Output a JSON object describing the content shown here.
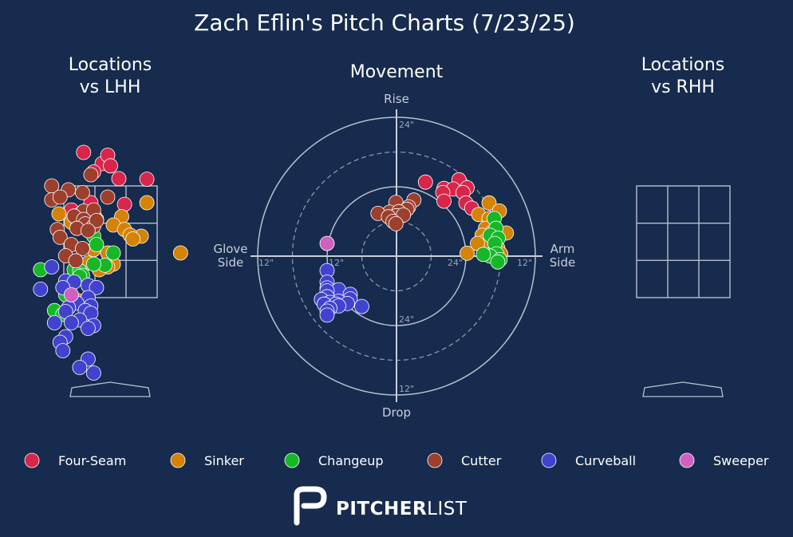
{
  "title": "Zach Eflin's Pitch Charts (7/23/25)",
  "panels": {
    "lhh_title": [
      "Locations",
      "vs LHH"
    ],
    "movement_title": "Movement",
    "rhh_title": [
      "Locations",
      "vs RHH"
    ]
  },
  "movement_labels": {
    "top": "Rise",
    "bottom": "Drop",
    "left": [
      "Glove",
      "Side"
    ],
    "right": [
      "Arm",
      "Side"
    ],
    "ring_labels": [
      "24\"",
      "12\"",
      "12\"",
      "24\"",
      "12\"",
      "24\"",
      "12\"",
      "24\""
    ]
  },
  "brand": {
    "bold": "PITCHER",
    "light": "LIST"
  },
  "colors": {
    "background": "#162b4d",
    "Four-Seam": "#d7264a",
    "Sinker": "#d48304",
    "Changeup": "#16b828",
    "Cutter": "#9c3f2d",
    "Curveball": "#4143cf",
    "Sweeper": "#d060c0"
  },
  "legend": [
    "Four-Seam",
    "Sinker",
    "Changeup",
    "Cutter",
    "Curveball",
    "Sweeper"
  ],
  "chart_data": [
    {
      "type": "scatter",
      "title": "Locations vs LHH",
      "xlabel": "",
      "ylabel": "",
      "strike_zone": "3x3 grid",
      "series": [
        {
          "name": "Four-Seam",
          "points": [
            [
              -0.48,
              4.1
            ],
            [
              -0.15,
              3.9
            ],
            [
              -0.05,
              4.05
            ],
            [
              0.0,
              3.86
            ],
            [
              -0.3,
              3.75
            ],
            [
              0.15,
              3.63
            ],
            [
              0.65,
              3.62
            ],
            [
              -0.35,
              3.2
            ],
            [
              0.25,
              3.17
            ],
            [
              -0.7,
              3.07
            ],
            [
              -0.55,
              2.99
            ],
            [
              -0.4,
              2.95
            ],
            [
              -0.3,
              3.0
            ],
            [
              -0.35,
              2.85
            ],
            [
              -0.5,
              2.85
            ]
          ]
        },
        {
          "name": "Sinker",
          "points": [
            [
              0.65,
              3.2
            ],
            [
              -0.92,
              3.0
            ],
            [
              -0.7,
              2.85
            ],
            [
              -0.25,
              2.9
            ],
            [
              -0.45,
              2.82
            ],
            [
              -0.4,
              2.75
            ],
            [
              0.2,
              2.95
            ],
            [
              0.05,
              2.8
            ],
            [
              0.25,
              2.72
            ],
            [
              0.55,
              2.6
            ],
            [
              0.35,
              2.62
            ],
            [
              -0.3,
              2.36
            ],
            [
              -0.05,
              2.3
            ],
            [
              0.05,
              2.1
            ],
            [
              -0.4,
              2.12
            ],
            [
              -0.05,
              2.05
            ],
            [
              -0.2,
              2.0
            ],
            [
              0.4,
              2.55
            ],
            [
              1.25,
              2.3
            ],
            [
              -0.6,
              1.45
            ]
          ]
        },
        {
          "name": "Changeup",
          "points": [
            [
              -0.3,
              2.6
            ],
            [
              -0.25,
              2.45
            ],
            [
              0.05,
              2.3
            ],
            [
              -0.1,
              2.08
            ],
            [
              -0.3,
              2.1
            ],
            [
              -0.65,
              2.0
            ],
            [
              -0.55,
              1.98
            ],
            [
              -1.25,
              2.0
            ],
            [
              -0.5,
              1.9
            ],
            [
              -0.55,
              1.88
            ],
            [
              -0.8,
              1.55
            ],
            [
              -1.0,
              1.27
            ],
            [
              -0.85,
              1.2
            ]
          ]
        },
        {
          "name": "Cutter",
          "points": [
            [
              -0.35,
              3.7
            ],
            [
              -1.05,
              3.5
            ],
            [
              -0.75,
              3.43
            ],
            [
              -0.5,
              3.38
            ],
            [
              -0.05,
              3.3
            ],
            [
              -1.05,
              3.25
            ],
            [
              -0.9,
              3.3
            ],
            [
              -0.48,
              3.05
            ],
            [
              -0.3,
              3.07
            ],
            [
              -0.65,
              2.96
            ],
            [
              -0.48,
              2.9
            ],
            [
              -0.45,
              2.82
            ],
            [
              -0.3,
              2.78
            ],
            [
              -0.25,
              2.88
            ],
            [
              -0.6,
              2.74
            ],
            [
              -0.4,
              2.7
            ],
            [
              -0.95,
              2.72
            ],
            [
              -0.9,
              2.58
            ],
            [
              -0.7,
              2.45
            ],
            [
              -0.5,
              2.38
            ],
            [
              -0.8,
              2.25
            ],
            [
              -0.62,
              2.16
            ]
          ]
        },
        {
          "name": "Curveball",
          "points": [
            [
              -1.05,
              2.05
            ],
            [
              -0.8,
              1.8
            ],
            [
              -0.65,
              1.78
            ],
            [
              -0.85,
              1.68
            ],
            [
              -0.4,
              1.72
            ],
            [
              -0.25,
              1.68
            ],
            [
              -1.25,
              1.65
            ],
            [
              -0.4,
              1.5
            ],
            [
              -0.6,
              1.4
            ],
            [
              -0.35,
              1.35
            ],
            [
              -0.75,
              1.32
            ],
            [
              -0.45,
              1.27
            ],
            [
              -0.35,
              1.22
            ],
            [
              -0.8,
              1.25
            ],
            [
              -0.55,
              1.1
            ],
            [
              -0.7,
              1.05
            ],
            [
              -1.0,
              1.05
            ],
            [
              -0.3,
              1.0
            ],
            [
              -0.4,
              0.95
            ],
            [
              -0.8,
              0.8
            ],
            [
              -0.9,
              0.7
            ],
            [
              -0.85,
              0.55
            ],
            [
              -0.4,
              0.4
            ],
            [
              -0.55,
              0.25
            ],
            [
              -0.3,
              0.15
            ]
          ]
        },
        {
          "name": "Sweeper",
          "points": [
            [
              -0.7,
              1.55
            ]
          ]
        }
      ]
    },
    {
      "type": "scatter",
      "title": "Movement",
      "xlabel": "Glove Side / Arm Side",
      "ylabel": "Drop / Rise",
      "rings_inches": [
        6,
        12,
        18,
        24
      ],
      "xlim": [
        -24,
        24
      ],
      "ylim": [
        -24,
        24
      ],
      "series": [
        {
          "name": "Four-Seam",
          "points": [
            [
              5.0,
              12.8
            ],
            [
              10.8,
              13.2
            ],
            [
              12.2,
              11.8
            ],
            [
              8.2,
              11.7
            ],
            [
              9.8,
              11.6
            ],
            [
              8.0,
              11.0
            ],
            [
              11.5,
              11.0
            ],
            [
              8.2,
              9.5
            ],
            [
              12.0,
              9.2
            ],
            [
              13.0,
              8.3
            ]
          ]
        },
        {
          "name": "Sinker",
          "points": [
            [
              16.0,
              9.2
            ],
            [
              17.8,
              7.8
            ],
            [
              14.2,
              7.2
            ],
            [
              16.0,
              6.5
            ],
            [
              15.4,
              4.8
            ],
            [
              16.6,
              4.2
            ],
            [
              14.8,
              3.6
            ],
            [
              17.1,
              3.2
            ],
            [
              19.0,
              4.0
            ],
            [
              16.9,
              2.2
            ],
            [
              15.2,
              2.5
            ],
            [
              14.0,
              2.2
            ],
            [
              17.5,
              1.4
            ],
            [
              18.0,
              0.4
            ],
            [
              12.2,
              0.5
            ]
          ]
        },
        {
          "name": "Changeup",
          "points": [
            [
              16.9,
              6.5
            ],
            [
              17.2,
              4.8
            ],
            [
              16.2,
              3.6
            ],
            [
              17.6,
              3.1
            ],
            [
              17.0,
              2.2
            ],
            [
              17.3,
              0.4
            ],
            [
              16.2,
              0.0
            ],
            [
              15.0,
              0.3
            ],
            [
              17.9,
              -0.6
            ],
            [
              17.5,
              -1.0
            ]
          ]
        },
        {
          "name": "Cutter",
          "points": [
            [
              3.0,
              9.7
            ],
            [
              -0.1,
              9.3
            ],
            [
              2.1,
              8.5
            ],
            [
              1.8,
              8.1
            ],
            [
              -1.2,
              7.6
            ],
            [
              0.4,
              7.7
            ],
            [
              0.0,
              7.0
            ],
            [
              1.2,
              7.1
            ],
            [
              -3.2,
              7.4
            ],
            [
              -1.4,
              6.8
            ],
            [
              -0.6,
              6.0
            ],
            [
              -0.1,
              5.6
            ]
          ]
        },
        {
          "name": "Curveball",
          "points": [
            [
              -12.0,
              -2.5
            ],
            [
              -12.0,
              -4.5
            ],
            [
              -12.0,
              -5.5
            ],
            [
              -10.0,
              -5.8
            ],
            [
              -12.0,
              -6.0
            ],
            [
              -8.0,
              -6.6
            ],
            [
              -12.0,
              -7.0
            ],
            [
              -8.0,
              -7.4
            ],
            [
              -10.0,
              -7.8
            ],
            [
              -8.5,
              -8.2
            ],
            [
              -13.0,
              -7.5
            ],
            [
              -11.5,
              -8.0
            ],
            [
              -12.5,
              -8.3
            ],
            [
              -10.5,
              -8.3
            ],
            [
              -10.0,
              -8.6
            ],
            [
              -6.0,
              -8.7
            ],
            [
              -11.5,
              -9.0
            ],
            [
              -12.0,
              -9.5
            ],
            [
              -12.0,
              -10.2
            ]
          ]
        },
        {
          "name": "Sweeper",
          "points": [
            [
              -12.0,
              2.2
            ]
          ]
        }
      ]
    },
    {
      "type": "scatter",
      "title": "Locations vs RHH",
      "xlabel": "",
      "ylabel": "",
      "strike_zone": "3x3 grid",
      "series": []
    }
  ]
}
